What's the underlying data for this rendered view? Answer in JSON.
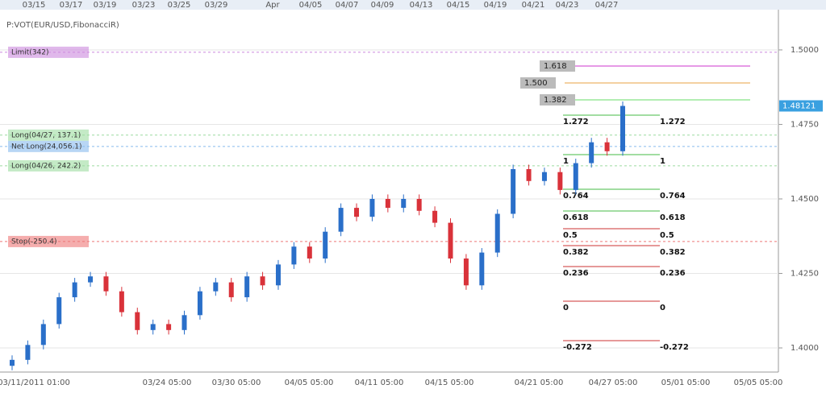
{
  "chart_data": {
    "type": "candlestick",
    "indicator": "P:VOT(EUR/USD,FibonacciR)",
    "top_labels": [
      "03/15",
      "03/17",
      "03/19",
      "03/23",
      "03/25",
      "03/29",
      "Apr",
      "04/05",
      "04/07",
      "04/09",
      "04/13",
      "04/15",
      "04/19",
      "04/21",
      "04/23",
      "04/27"
    ],
    "bottom_labels": [
      "03/11/2011 01:00",
      "03/24 05:00",
      "03/30 05:00",
      "04/05 05:00",
      "04/11 05:00",
      "04/15 05:00",
      "04/21 05:00",
      "04/27 05:00",
      "05/01 05:00",
      "05/05 05:00"
    ],
    "ylim": [
      1.3919,
      1.5135
    ],
    "yticks": [
      {
        "value": 1.4,
        "label": "1.4000"
      },
      {
        "value": 1.425,
        "label": "1.4250"
      },
      {
        "value": 1.45,
        "label": "1.4500"
      },
      {
        "value": 1.475,
        "label": "1.4750"
      },
      {
        "value": 1.5,
        "label": "1.5000"
      }
    ],
    "last_price": {
      "value": 1.48121,
      "label": "1.48121"
    },
    "open": [
      1.394,
      1.396,
      1.401,
      1.408,
      1.417,
      1.422,
      1.424,
      1.419,
      1.412,
      1.406,
      1.408,
      1.406,
      1.411,
      1.419,
      1.422,
      1.417,
      1.424,
      1.421,
      1.428,
      1.434,
      1.43,
      1.439,
      1.447,
      1.444,
      1.45,
      1.447,
      1.45,
      1.446,
      1.442,
      1.43,
      1.421,
      1.432,
      1.445,
      1.46,
      1.456,
      1.459,
      1.453,
      1.462,
      1.469,
      1.466
    ],
    "high": [
      1.3975,
      1.4025,
      1.4095,
      1.4185,
      1.4235,
      1.4255,
      1.4255,
      1.4205,
      1.4135,
      1.4095,
      1.4095,
      1.4125,
      1.4205,
      1.4235,
      1.4235,
      1.4255,
      1.4255,
      1.4295,
      1.4355,
      1.4355,
      1.4405,
      1.4485,
      1.4485,
      1.4515,
      1.4515,
      1.4515,
      1.4515,
      1.4475,
      1.4435,
      1.4315,
      1.4335,
      1.4465,
      1.4615,
      1.4615,
      1.4605,
      1.4605,
      1.4635,
      1.4705,
      1.4705,
      1.4827
    ],
    "low": [
      1.3925,
      1.3945,
      1.3995,
      1.4065,
      1.4155,
      1.4205,
      1.4175,
      1.4105,
      1.4045,
      1.4045,
      1.4045,
      1.4045,
      1.4095,
      1.4175,
      1.4155,
      1.4155,
      1.4195,
      1.4195,
      1.4265,
      1.4285,
      1.4285,
      1.4375,
      1.4425,
      1.4425,
      1.4455,
      1.4455,
      1.4445,
      1.4405,
      1.4285,
      1.4195,
      1.4195,
      1.4305,
      1.4435,
      1.4545,
      1.4545,
      1.4515,
      1.4515,
      1.4605,
      1.4645,
      1.4645
    ],
    "close": [
      1.396,
      1.401,
      1.408,
      1.417,
      1.422,
      1.424,
      1.419,
      1.412,
      1.406,
      1.408,
      1.406,
      1.411,
      1.419,
      1.422,
      1.417,
      1.424,
      1.421,
      1.428,
      1.434,
      1.43,
      1.439,
      1.447,
      1.444,
      1.45,
      1.447,
      1.45,
      1.446,
      1.442,
      1.43,
      1.421,
      1.432,
      1.445,
      1.46,
      1.456,
      1.459,
      1.453,
      1.462,
      1.469,
      1.466,
      1.4812
    ],
    "up_color": "#2a6fc9",
    "down_color": "#d9323a",
    "fib_upper": [
      {
        "level": "1.618",
        "price": 1.49459,
        "color": "#cc33cc"
      },
      {
        "level": "1.500",
        "price": 1.48892,
        "color": "#e8a040"
      },
      {
        "level": "1.382",
        "price": 1.48324,
        "color": "#66dd66"
      }
    ],
    "fib": [
      {
        "level": "1.272",
        "price": 1.47811
      },
      {
        "level": "1",
        "price": 1.46486
      },
      {
        "level": "0.764",
        "price": 1.45324
      },
      {
        "level": "0.618",
        "price": 1.44595
      },
      {
        "level": "0.5",
        "price": 1.44
      },
      {
        "level": "0.382",
        "price": 1.43432
      },
      {
        "level": "0.236",
        "price": 1.4273
      },
      {
        "level": "0",
        "price": 1.41568
      },
      {
        "level": "-0.272",
        "price": 1.40243
      }
    ],
    "orders": [
      {
        "label": "Limit(342)",
        "price": 1.4992,
        "color": "#cc88dd"
      },
      {
        "label": "Long(04/27, 137.1)",
        "price": 1.4714,
        "color": "#9cdca0"
      },
      {
        "label": "Net Long(24,056.1)",
        "price": 1.4676,
        "color": "#88bbee"
      },
      {
        "label": "Long(04/26, 242.2)",
        "price": 1.4611,
        "color": "#9cdca0"
      },
      {
        "label": "Stop(-250.4)",
        "price": 1.4357,
        "color": "#ee7777"
      }
    ]
  }
}
